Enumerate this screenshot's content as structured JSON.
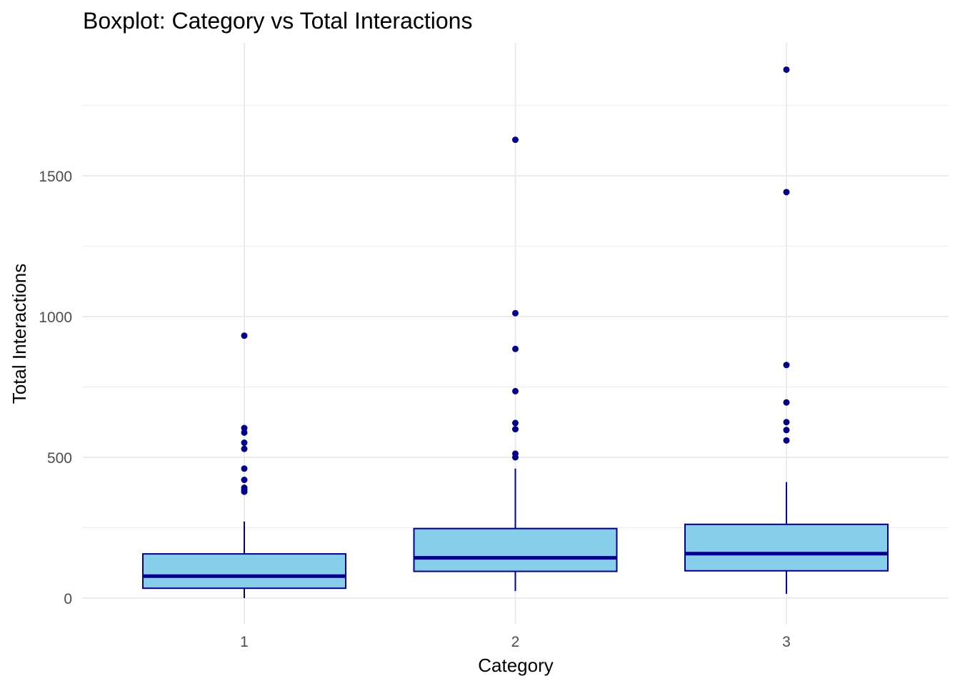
{
  "chart_data": {
    "type": "boxplot",
    "title": "Boxplot: Category vs Total Interactions",
    "xlabel": "Category",
    "ylabel": "Total Interactions",
    "categories": [
      "1",
      "2",
      "3"
    ],
    "y_ticks": [
      0,
      500,
      1000,
      1500
    ],
    "ylim": [
      -85,
      1950
    ],
    "grid": true,
    "legend": "none",
    "colors": {
      "box_fill": "#87CEEB",
      "box_outline": "#00008B",
      "median": "#00008B",
      "outlier": "#00008B",
      "grid": "#ebebeb"
    },
    "boxes": [
      {
        "category": "1",
        "lower_whisker": 0,
        "q1": 35,
        "median": 78,
        "q3": 157,
        "upper_whisker": 272,
        "outliers": [
          378,
          385,
          392,
          420,
          460,
          530,
          552,
          588,
          604,
          932
        ]
      },
      {
        "category": "2",
        "lower_whisker": 25,
        "q1": 95,
        "median": 143,
        "q3": 247,
        "upper_whisker": 460,
        "outliers": [
          500,
          513,
          600,
          622,
          735,
          885,
          1012,
          1628
        ]
      },
      {
        "category": "3",
        "lower_whisker": 15,
        "q1": 97,
        "median": 158,
        "q3": 262,
        "upper_whisker": 412,
        "outliers": [
          560,
          597,
          625,
          695,
          828,
          1442,
          1877
        ]
      }
    ]
  }
}
